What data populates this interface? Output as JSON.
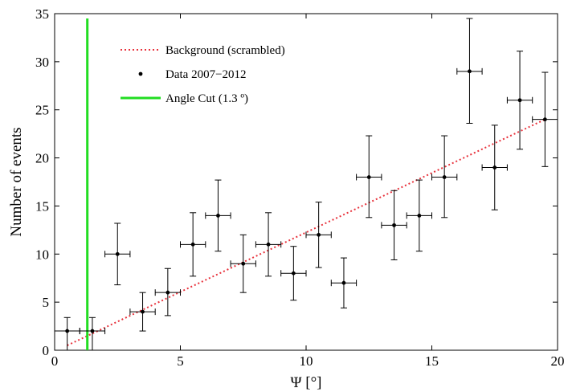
{
  "chart_data": {
    "type": "scatter",
    "xlabel": "Ψ [°]",
    "ylabel": "Number of events",
    "xlim": [
      0,
      20
    ],
    "ylim": [
      0,
      35
    ],
    "xticks": [
      0,
      5,
      10,
      15,
      20
    ],
    "yticks": [
      0,
      5,
      10,
      15,
      20,
      25,
      30,
      35
    ],
    "grid": false,
    "legend_position": "top-left",
    "series": [
      {
        "name": "Background (scrambled)",
        "kind": "dotted-line",
        "color": "#e8323c",
        "x": [
          0.5,
          19.5
        ],
        "y": [
          0.5,
          24.0
        ]
      },
      {
        "name": "Data 2007−2012",
        "kind": "points-with-errorbars",
        "color": "#000000",
        "x_error": 0.5,
        "points": [
          {
            "x": 0.5,
            "y": 2,
            "yerr_low": 2,
            "yerr_high": 1.4
          },
          {
            "x": 1.5,
            "y": 2,
            "yerr_low": 2,
            "yerr_high": 1.4
          },
          {
            "x": 2.5,
            "y": 10,
            "yerr_low": 3.2,
            "yerr_high": 3.2
          },
          {
            "x": 3.5,
            "y": 4,
            "yerr_low": 2,
            "yerr_high": 2
          },
          {
            "x": 4.5,
            "y": 6,
            "yerr_low": 2.4,
            "yerr_high": 2.5
          },
          {
            "x": 5.5,
            "y": 11,
            "yerr_low": 3.3,
            "yerr_high": 3.3
          },
          {
            "x": 6.5,
            "y": 14,
            "yerr_low": 3.7,
            "yerr_high": 3.7
          },
          {
            "x": 7.5,
            "y": 9,
            "yerr_low": 3,
            "yerr_high": 3
          },
          {
            "x": 8.5,
            "y": 11,
            "yerr_low": 3.3,
            "yerr_high": 3.3
          },
          {
            "x": 9.5,
            "y": 8,
            "yerr_low": 2.8,
            "yerr_high": 2.8
          },
          {
            "x": 10.5,
            "y": 12,
            "yerr_low": 3.4,
            "yerr_high": 3.4
          },
          {
            "x": 11.5,
            "y": 7,
            "yerr_low": 2.6,
            "yerr_high": 2.6
          },
          {
            "x": 12.5,
            "y": 18,
            "yerr_low": 4.2,
            "yerr_high": 4.3
          },
          {
            "x": 13.5,
            "y": 13,
            "yerr_low": 3.6,
            "yerr_high": 3.6
          },
          {
            "x": 14.5,
            "y": 14,
            "yerr_low": 3.7,
            "yerr_high": 3.7
          },
          {
            "x": 15.5,
            "y": 18,
            "yerr_low": 4.2,
            "yerr_high": 4.3
          },
          {
            "x": 16.5,
            "y": 29,
            "yerr_low": 5.4,
            "yerr_high": 5.5
          },
          {
            "x": 17.5,
            "y": 19,
            "yerr_low": 4.4,
            "yerr_high": 4.4
          },
          {
            "x": 18.5,
            "y": 26,
            "yerr_low": 5.1,
            "yerr_high": 5.1
          },
          {
            "x": 19.5,
            "y": 24,
            "yerr_low": 4.9,
            "yerr_high": 4.9
          }
        ]
      },
      {
        "name": "Angle Cut (1.3 º)",
        "kind": "vertical-line",
        "color": "#22dd22",
        "x": 1.3,
        "y_top": 34.5
      }
    ]
  }
}
